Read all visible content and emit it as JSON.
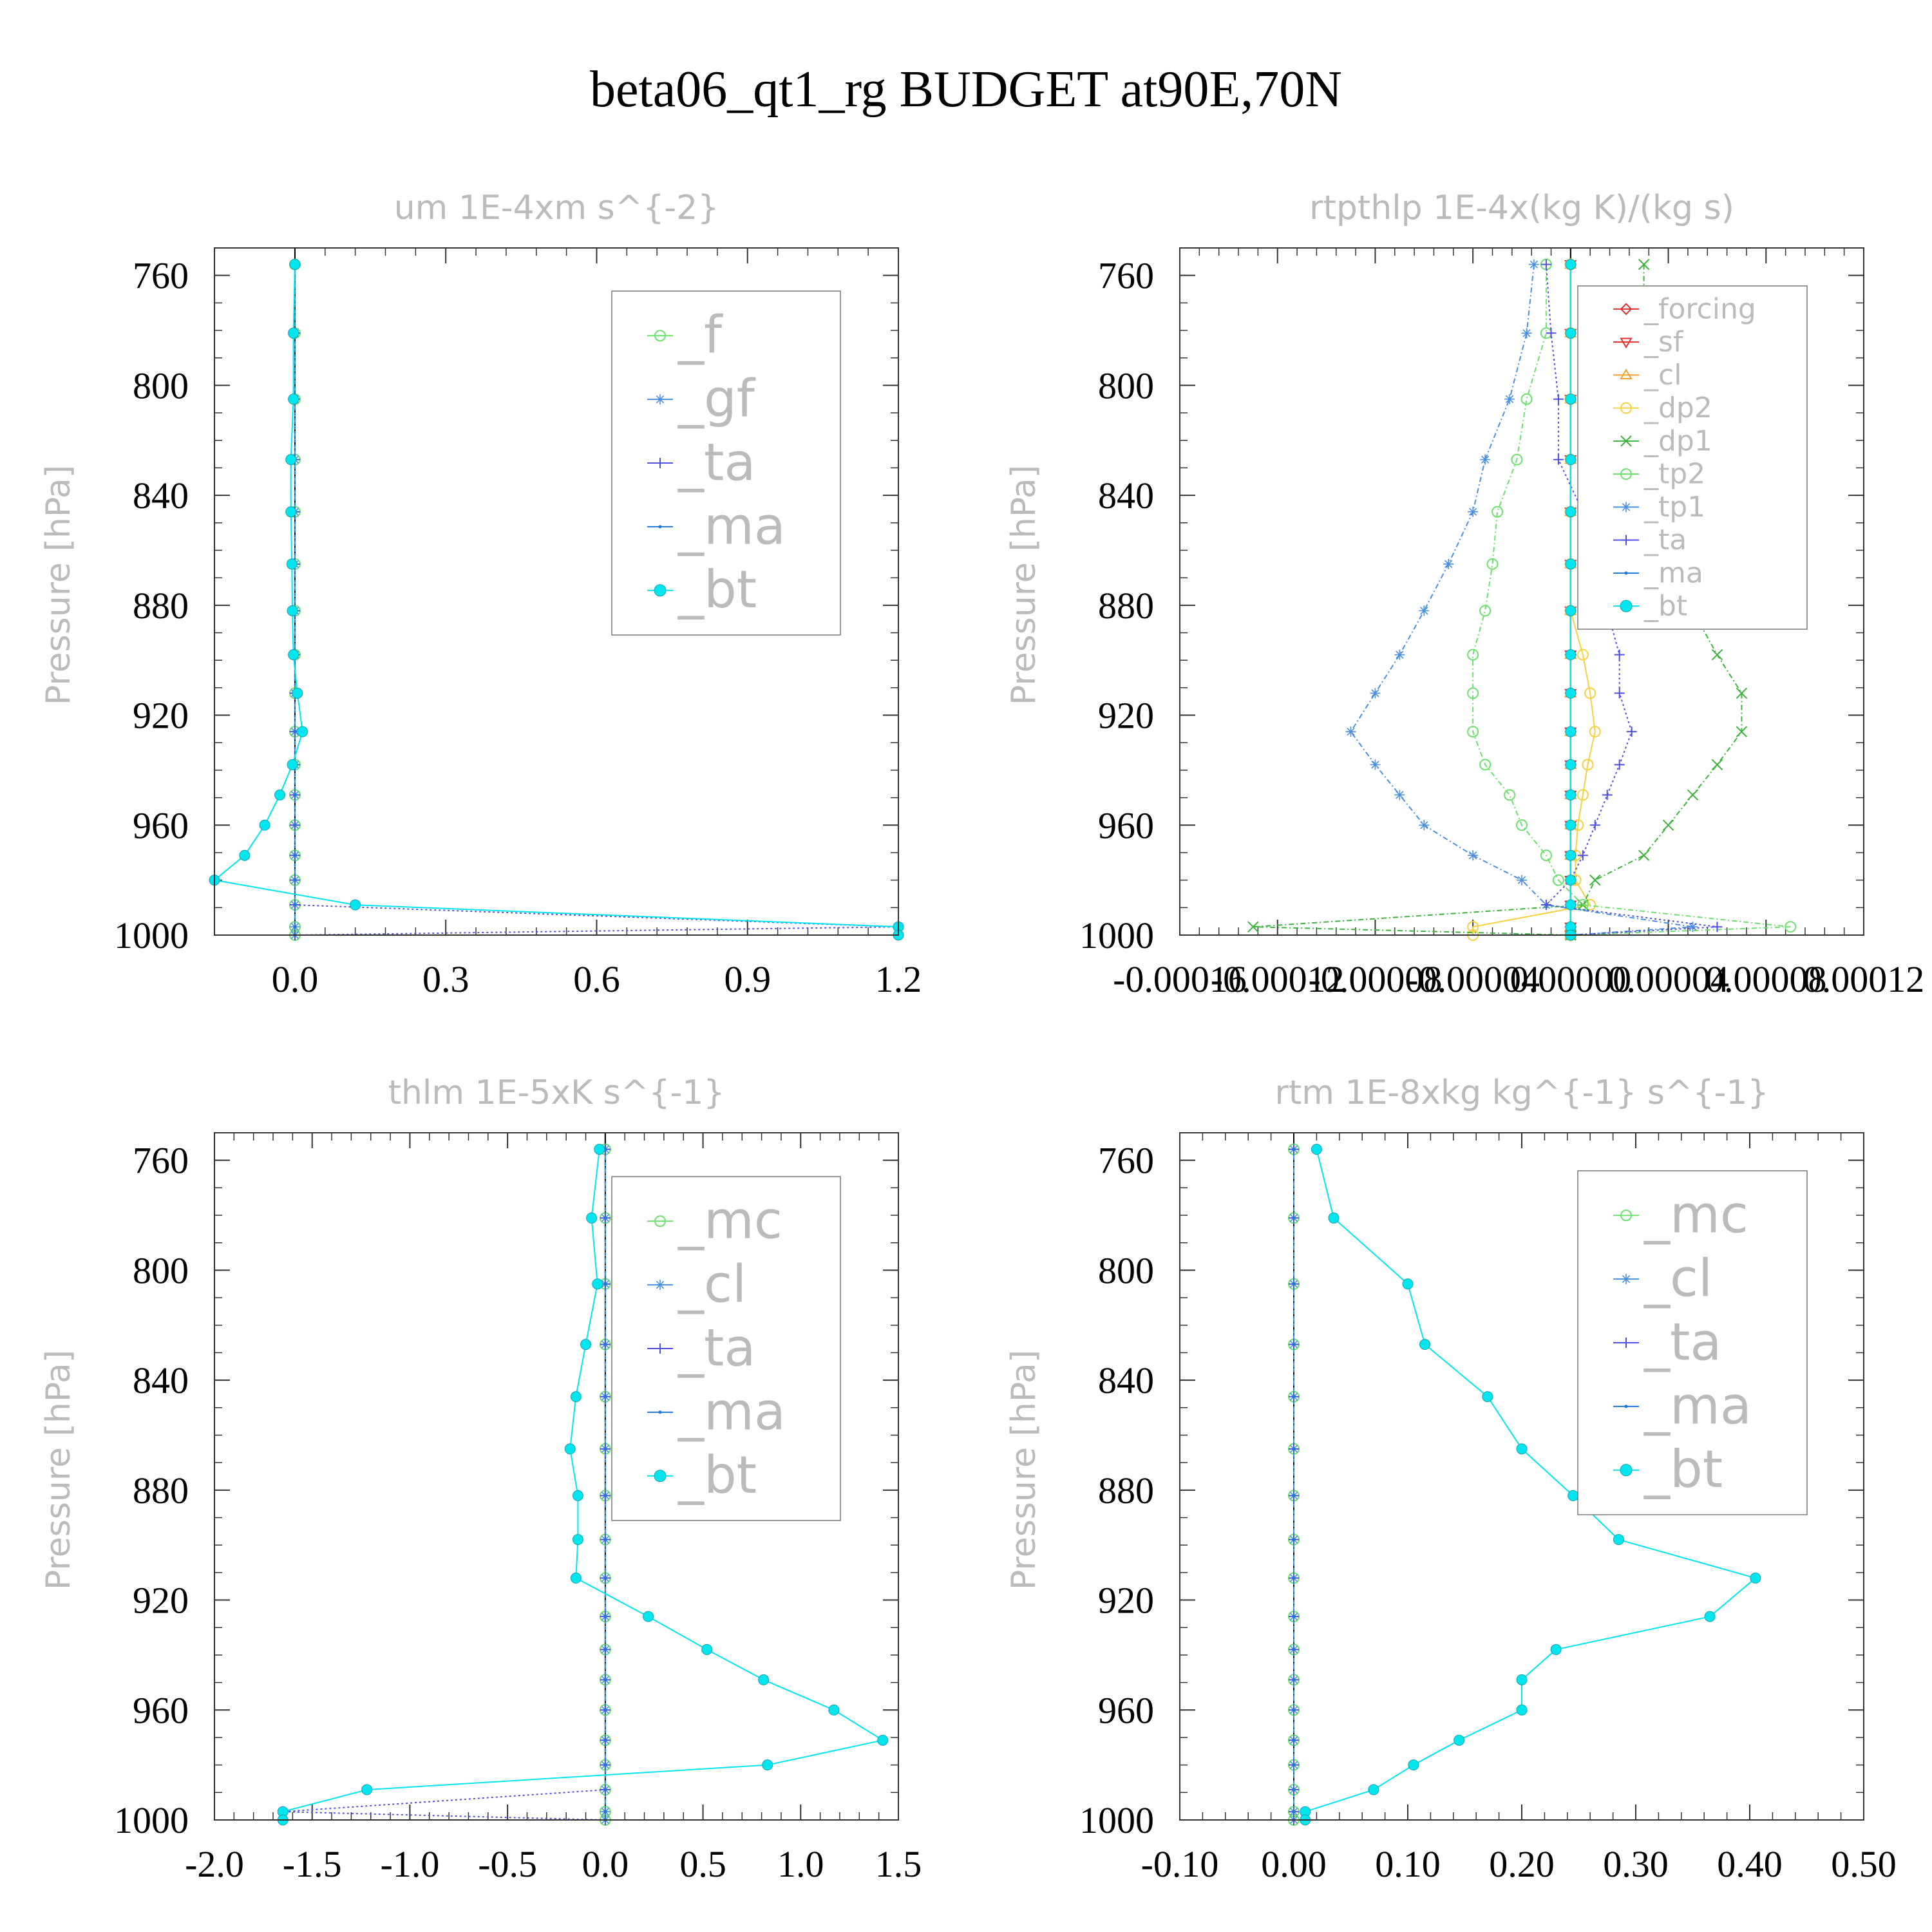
{
  "figure_title": "beta06_qt1_rg  BUDGET at90E,70N",
  "colors": {
    "frame": "#333333",
    "muted_text": "#bbbbbb",
    "f": "#6ce06c",
    "gf": "#4a90e2",
    "ta": "#5050e0",
    "ma": "#1f77d4",
    "bt": "#00e5ee",
    "mc": "#6ce06c",
    "cl": "#4a90e2",
    "forcing": "#e03030",
    "sf": "#e03030",
    "cl_orange": "#f0a030",
    "dp2": "#f5d040",
    "dp1": "#3cb43c",
    "tp2": "#6ce06c",
    "tp1": "#4a90e2"
  },
  "chart_data": [
    {
      "type": "line",
      "title": "um   1E-4xm s^{-2}",
      "ylabel": "Pressure [hPa]",
      "xlim": [
        -0.16,
        1.2
      ],
      "xticks": [
        0.0,
        0.3,
        0.6,
        0.9,
        1.2
      ],
      "xtick_labels": [
        "0.0",
        "0.3",
        "0.6",
        "0.9",
        "1.2"
      ],
      "ylim": [
        750,
        1000
      ],
      "yticks": [
        760,
        800,
        840,
        880,
        920,
        960,
        1000
      ],
      "ytick_labels": [
        "760",
        "800",
        "840",
        "880",
        "920",
        "960",
        "1000"
      ],
      "legend": "top-right",
      "pressure": [
        756,
        781,
        805,
        827,
        846,
        865,
        882,
        898,
        912,
        926,
        938,
        949,
        960,
        971,
        980,
        989,
        997,
        1000
      ],
      "series": [
        {
          "name": "_f",
          "key": "f",
          "marker": "circle-open",
          "dash": "6,4",
          "values": [
            0,
            0,
            0,
            0,
            0,
            0,
            0,
            0,
            0,
            0,
            0,
            0,
            0,
            0,
            0,
            0,
            0,
            0
          ]
        },
        {
          "name": "_gf",
          "key": "gf",
          "marker": "star",
          "dash": "6,4",
          "values": [
            0,
            0,
            0,
            0,
            0,
            0,
            0,
            0,
            0,
            0,
            0,
            0,
            0,
            0,
            0,
            0,
            0,
            0
          ]
        },
        {
          "name": "_ta",
          "key": "ta",
          "marker": "plus",
          "dash": "3,4",
          "values": [
            0,
            0,
            0,
            0,
            0,
            0,
            0,
            0,
            0,
            0,
            0,
            0,
            0,
            0,
            0,
            0,
            1.2,
            0
          ]
        },
        {
          "name": "_ma",
          "key": "ma",
          "marker": "dot",
          "dash": "3,4",
          "values": [
            0,
            0,
            0,
            0,
            0,
            0,
            0,
            0,
            0,
            0,
            0,
            0,
            0,
            0,
            0,
            0,
            0,
            0
          ]
        },
        {
          "name": "_bt",
          "key": "bt",
          "marker": "filled",
          "dash": "",
          "values": [
            0,
            -0.003,
            -0.003,
            -0.008,
            -0.008,
            -0.006,
            -0.005,
            -0.003,
            0.005,
            0.015,
            -0.005,
            -0.03,
            -0.06,
            -0.1,
            -0.16,
            0.12,
            1.2,
            1.2
          ]
        }
      ]
    },
    {
      "type": "line",
      "title": "rtpthlp   1E-4x(kg K)/(kg s)",
      "ylabel": "Pressure [hPa]",
      "xlim": [
        -0.00016,
        0.00012
      ],
      "xticks": [
        -0.00016,
        -0.00012,
        -8e-05,
        -4e-05,
        0.0,
        4e-05,
        8e-05,
        0.00012
      ],
      "xtick_labels": [
        "-0.00016",
        "-0.00012",
        "-0.00008",
        "-0.00004",
        "0.00000",
        "0.00004",
        "0.00008",
        "0.00012"
      ],
      "ylim": [
        750,
        1000
      ],
      "yticks": [
        760,
        800,
        840,
        880,
        920,
        960,
        1000
      ],
      "ytick_labels": [
        "760",
        "800",
        "840",
        "880",
        "920",
        "960",
        "1000"
      ],
      "legend": "top-right",
      "pressure": [
        756,
        781,
        805,
        827,
        846,
        865,
        882,
        898,
        912,
        926,
        938,
        949,
        960,
        971,
        980,
        989,
        997,
        1000
      ],
      "series": [
        {
          "name": "_forcing",
          "key": "forcing",
          "marker": "diamond",
          "dash": "",
          "values": [
            0,
            0,
            0,
            0,
            0,
            0,
            0,
            0,
            0,
            0,
            0,
            0,
            0,
            0,
            0,
            0,
            0,
            0
          ]
        },
        {
          "name": "_sf",
          "key": "sf",
          "marker": "tri-down",
          "dash": "",
          "values": [
            0,
            0,
            0,
            0,
            0,
            0,
            0,
            0,
            0,
            0,
            0,
            0,
            0,
            0,
            0,
            0,
            0,
            0
          ]
        },
        {
          "name": "_cl",
          "key": "cl_orange",
          "marker": "tri-up",
          "dash": "",
          "values": [
            0,
            0,
            0,
            0,
            0,
            0,
            0,
            0,
            0,
            0,
            0,
            0,
            0,
            0,
            0,
            0,
            0,
            0
          ]
        },
        {
          "name": "_dp2",
          "key": "dp2",
          "marker": "circle-open",
          "dash": "",
          "values": [
            0,
            0,
            0,
            0,
            0,
            0,
            0,
            5e-06,
            8e-06,
            1e-05,
            7e-06,
            5e-06,
            3e-06,
            2e-06,
            2e-06,
            8e-06,
            -4e-05,
            -4e-05
          ]
        },
        {
          "name": "_dp1",
          "key": "dp1",
          "marker": "x",
          "dash": "8,4,2,4",
          "values": [
            3e-05,
            3e-05,
            4e-05,
            4e-05,
            4e-05,
            5e-05,
            5e-05,
            6e-05,
            7e-05,
            7e-05,
            6e-05,
            5e-05,
            4e-05,
            3e-05,
            1e-05,
            5e-06,
            -0.00013,
            0
          ]
        },
        {
          "name": "_tp2",
          "key": "tp2",
          "marker": "circle-open",
          "dash": "8,4,2,4",
          "values": [
            -1e-05,
            -1e-05,
            -1.8e-05,
            -2.2e-05,
            -3e-05,
            -3.2e-05,
            -3.5e-05,
            -4e-05,
            -4e-05,
            -4e-05,
            -3.5e-05,
            -2.5e-05,
            -2e-05,
            -1e-05,
            -5e-06,
            5e-06,
            9e-05,
            0
          ]
        },
        {
          "name": "_tp1",
          "key": "tp1",
          "marker": "star",
          "dash": "8,4,2,4",
          "values": [
            -1.5e-05,
            -1.8e-05,
            -2.5e-05,
            -3.5e-05,
            -4e-05,
            -5e-05,
            -6e-05,
            -7e-05,
            -8e-05,
            -9e-05,
            -8e-05,
            -7e-05,
            -6e-05,
            -4e-05,
            -2e-05,
            -1e-05,
            5e-05,
            0
          ]
        },
        {
          "name": "_ta",
          "key": "ta",
          "marker": "plus",
          "dash": "3,4",
          "values": [
            -1e-05,
            -8e-06,
            -5e-06,
            -5e-06,
            5e-06,
            1e-05,
            1.5e-05,
            2e-05,
            2e-05,
            2.5e-05,
            2e-05,
            1.5e-05,
            1e-05,
            5e-06,
            0,
            -1e-05,
            6e-05,
            0
          ]
        },
        {
          "name": "_ma",
          "key": "ma",
          "marker": "dot",
          "dash": "3,4",
          "values": [
            0,
            0,
            0,
            0,
            0,
            0,
            0,
            0,
            0,
            0,
            0,
            0,
            0,
            0,
            0,
            0,
            0,
            0
          ]
        },
        {
          "name": "_bt",
          "key": "bt",
          "marker": "filled",
          "dash": "",
          "values": [
            0,
            0,
            0,
            0,
            0,
            0,
            0,
            0,
            0,
            0,
            0,
            0,
            0,
            0,
            0,
            0,
            0,
            0
          ]
        }
      ]
    },
    {
      "type": "line",
      "title": "thlm   1E-5xK s^{-1}",
      "ylabel": "Pressure [hPa]",
      "xlim": [
        -2.0,
        1.5
      ],
      "xticks": [
        -2.0,
        -1.5,
        -1.0,
        -0.5,
        0.0,
        0.5,
        1.0,
        1.5
      ],
      "xtick_labels": [
        "-2.0",
        "-1.5",
        "-1.0",
        "-0.5",
        "0.0",
        "0.5",
        "1.0",
        "1.5"
      ],
      "ylim": [
        750,
        1000
      ],
      "yticks": [
        760,
        800,
        840,
        880,
        920,
        960,
        1000
      ],
      "ytick_labels": [
        "760",
        "800",
        "840",
        "880",
        "920",
        "960",
        "1000"
      ],
      "legend": "top-right",
      "pressure": [
        756,
        781,
        805,
        827,
        846,
        865,
        882,
        898,
        912,
        926,
        938,
        949,
        960,
        971,
        980,
        989,
        997,
        1000
      ],
      "series": [
        {
          "name": "_mc",
          "key": "mc",
          "marker": "circle-open",
          "dash": "6,4",
          "values": [
            0,
            0,
            0,
            0,
            0,
            0,
            0,
            0,
            0,
            0,
            0,
            0,
            0,
            0,
            0,
            0,
            0,
            0
          ]
        },
        {
          "name": "_cl",
          "key": "cl",
          "marker": "star",
          "dash": "6,4",
          "values": [
            0,
            0,
            0,
            0,
            0,
            0,
            0,
            0,
            0,
            0,
            0,
            0,
            0,
            0,
            0,
            0,
            0,
            0
          ]
        },
        {
          "name": "_ta",
          "key": "ta",
          "marker": "plus",
          "dash": "3,4",
          "values": [
            0,
            0,
            0,
            0,
            0,
            0,
            0,
            0,
            0,
            0,
            0,
            0,
            0,
            0,
            0,
            0,
            -1.65,
            0
          ]
        },
        {
          "name": "_ma",
          "key": "ma",
          "marker": "dot",
          "dash": "3,4",
          "values": [
            0,
            0,
            0,
            0,
            0,
            0,
            0,
            0,
            0,
            0,
            0,
            0,
            0,
            0,
            0,
            0,
            0,
            0
          ]
        },
        {
          "name": "_bt",
          "key": "bt",
          "marker": "filled",
          "dash": "",
          "values": [
            -0.03,
            -0.07,
            -0.04,
            -0.1,
            -0.15,
            -0.18,
            -0.14,
            -0.14,
            -0.15,
            0.22,
            0.52,
            0.81,
            1.17,
            1.42,
            0.83,
            -1.22,
            -1.65,
            -1.65
          ]
        }
      ]
    },
    {
      "type": "line",
      "title": "rtm   1E-8xkg kg^{-1} s^{-1}",
      "ylabel": "Pressure [hPa]",
      "xlim": [
        -0.1,
        0.5
      ],
      "xticks": [
        -0.1,
        0.0,
        0.1,
        0.2,
        0.3,
        0.4,
        0.5
      ],
      "xtick_labels": [
        "-0.10",
        "0.00",
        "0.10",
        "0.20",
        "0.30",
        "0.40",
        "0.50"
      ],
      "ylim": [
        750,
        1000
      ],
      "yticks": [
        760,
        800,
        840,
        880,
        920,
        960,
        1000
      ],
      "ytick_labels": [
        "760",
        "800",
        "840",
        "880",
        "920",
        "960",
        "1000"
      ],
      "legend": "top-right",
      "pressure": [
        756,
        781,
        805,
        827,
        846,
        865,
        882,
        898,
        912,
        926,
        938,
        949,
        960,
        971,
        980,
        989,
        997,
        1000
      ],
      "series": [
        {
          "name": "_mc",
          "key": "mc",
          "marker": "circle-open",
          "dash": "6,4",
          "values": [
            0,
            0,
            0,
            0,
            0,
            0,
            0,
            0,
            0,
            0,
            0,
            0,
            0,
            0,
            0,
            0,
            0,
            0
          ]
        },
        {
          "name": "_cl",
          "key": "cl",
          "marker": "star",
          "dash": "6,4",
          "values": [
            0,
            0,
            0,
            0,
            0,
            0,
            0,
            0,
            0,
            0,
            0,
            0,
            0,
            0,
            0,
            0,
            0,
            0
          ]
        },
        {
          "name": "_ta",
          "key": "ta",
          "marker": "plus",
          "dash": "3,4",
          "values": [
            0,
            0,
            0,
            0,
            0,
            0,
            0,
            0,
            0,
            0,
            0,
            0,
            0,
            0,
            0,
            0,
            0,
            0
          ]
        },
        {
          "name": "_ma",
          "key": "ma",
          "marker": "dot",
          "dash": "3,4",
          "values": [
            0,
            0,
            0,
            0,
            0,
            0,
            0,
            0,
            0,
            0,
            0,
            0,
            0,
            0,
            0,
            0,
            0,
            0
          ]
        },
        {
          "name": "_bt",
          "key": "bt",
          "marker": "filled",
          "dash": "",
          "values": [
            0.02,
            0.035,
            0.1,
            0.115,
            0.17,
            0.2,
            0.245,
            0.285,
            0.405,
            0.365,
            0.23,
            0.2,
            0.2,
            0.145,
            0.105,
            0.07,
            0.01,
            0.01
          ]
        }
      ]
    }
  ]
}
